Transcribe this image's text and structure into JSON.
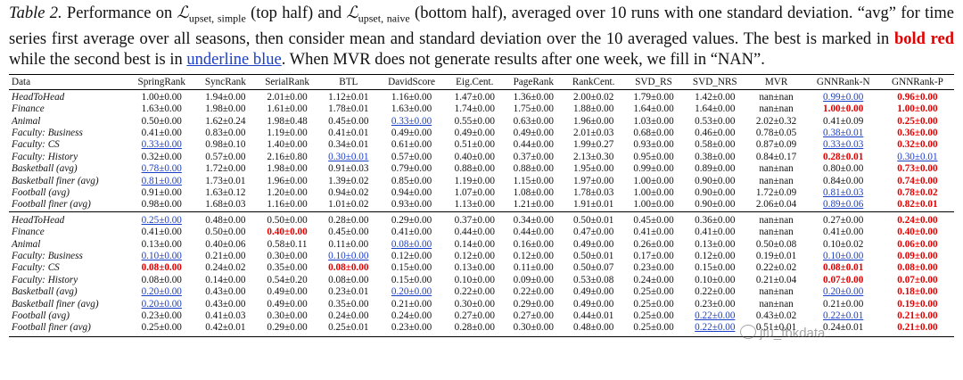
{
  "caption": {
    "label": "Table 2.",
    "t1": " Performance on ",
    "l1": "ℒ",
    "l1sub": "upset, simple",
    "t2": " (top half) and ",
    "l2": "ℒ",
    "l2sub": "upset, naive",
    "t3": " (bottom half), averaged over 10 runs with one standard deviation. “avg” for time series first average over all seasons, then consider mean and standard deviation over the 10 averaged values. The best is marked in ",
    "red": "bold red",
    "t4": " while the second best is in ",
    "blue": "underline blue",
    "t5": ". When MVR does not generate results after one week, we fill in “NAN”."
  },
  "table": {
    "headers": [
      "Data",
      "SpringRank",
      "SyncRank",
      "SerialRank",
      "BTL",
      "DavidScore",
      "Eig.Cent.",
      "PageRank",
      "RankCent.",
      "SVD_RS",
      "SVD_NRS",
      "MVR",
      "GNNRank-N",
      "GNNRank-P"
    ],
    "top": [
      [
        "HeadToHead",
        "1.00±0.00",
        "1.94±0.00",
        "2.01±0.00",
        "1.12±0.01",
        "1.16±0.00",
        "1.47±0.00",
        "1.36±0.00",
        "2.00±0.02",
        "1.79±0.00",
        "1.42±0.00",
        "nan±nan",
        "0.99±0.00",
        "0.96±0.00"
      ],
      [
        "Finance",
        "1.63±0.00",
        "1.98±0.00",
        "1.61±0.00",
        "1.78±0.01",
        "1.63±0.00",
        "1.74±0.00",
        "1.75±0.00",
        "1.88±0.00",
        "1.64±0.00",
        "1.64±0.00",
        "nan±nan",
        "1.00±0.00",
        "1.00±0.00"
      ],
      [
        "Animal",
        "0.50±0.00",
        "1.62±0.24",
        "1.98±0.48",
        "0.45±0.00",
        "0.33±0.00",
        "0.55±0.00",
        "0.63±0.00",
        "1.96±0.00",
        "1.03±0.00",
        "0.53±0.00",
        "2.02±0.32",
        "0.41±0.09",
        "0.25±0.00"
      ],
      [
        "Faculty: Business",
        "0.41±0.00",
        "0.83±0.00",
        "1.19±0.00",
        "0.41±0.01",
        "0.49±0.00",
        "0.49±0.00",
        "0.49±0.00",
        "2.01±0.03",
        "0.68±0.00",
        "0.46±0.00",
        "0.78±0.05",
        "0.38±0.01",
        "0.36±0.00"
      ],
      [
        "Faculty: CS",
        "0.33±0.00",
        "0.98±0.10",
        "1.40±0.00",
        "0.34±0.01",
        "0.61±0.00",
        "0.51±0.00",
        "0.44±0.00",
        "1.99±0.27",
        "0.93±0.00",
        "0.58±0.00",
        "0.87±0.09",
        "0.33±0.03",
        "0.32±0.00"
      ],
      [
        "Faculty: History",
        "0.32±0.00",
        "0.57±0.00",
        "2.16±0.80",
        "0.30±0.01",
        "0.57±0.00",
        "0.40±0.00",
        "0.37±0.00",
        "2.13±0.30",
        "0.95±0.00",
        "0.38±0.00",
        "0.84±0.17",
        "0.28±0.01",
        "0.30±0.01"
      ],
      [
        "Basketball (avg)",
        "0.78±0.00",
        "1.72±0.00",
        "1.98±0.00",
        "0.91±0.03",
        "0.79±0.00",
        "0.88±0.00",
        "0.88±0.00",
        "1.95±0.00",
        "0.99±0.00",
        "0.89±0.00",
        "nan±nan",
        "0.80±0.00",
        "0.73±0.00"
      ],
      [
        "Basketball finer (avg)",
        "0.81±0.00",
        "1.73±0.01",
        "1.96±0.00",
        "1.39±0.02",
        "0.85±0.00",
        "1.19±0.00",
        "1.15±0.00",
        "1.97±0.00",
        "1.00±0.00",
        "0.90±0.00",
        "nan±nan",
        "0.84±0.00",
        "0.74±0.00"
      ],
      [
        "Football (avg)",
        "0.91±0.00",
        "1.63±0.12",
        "1.20±0.00",
        "0.94±0.02",
        "0.94±0.00",
        "1.07±0.00",
        "1.08±0.00",
        "1.78±0.03",
        "1.00±0.00",
        "0.90±0.00",
        "1.72±0.09",
        "0.81±0.03",
        "0.78±0.02"
      ],
      [
        "Football finer (avg)",
        "0.98±0.00",
        "1.68±0.03",
        "1.16±0.00",
        "1.01±0.02",
        "0.93±0.00",
        "1.13±0.00",
        "1.21±0.00",
        "1.91±0.01",
        "1.00±0.00",
        "0.90±0.00",
        "2.06±0.04",
        "0.89±0.06",
        "0.82±0.01"
      ]
    ],
    "top_marks": [
      [
        "",
        "",
        "",
        "",
        "",
        "",
        "",
        "",
        "",
        "",
        "",
        "",
        "s",
        "b"
      ],
      [
        "",
        "",
        "",
        "",
        "",
        "",
        "",
        "",
        "",
        "",
        "",
        "",
        "b",
        "b"
      ],
      [
        "",
        "",
        "",
        "",
        "",
        "s",
        "",
        "",
        "",
        "",
        "",
        "",
        "",
        "b"
      ],
      [
        "",
        "",
        "",
        "",
        "",
        "",
        "",
        "",
        "",
        "",
        "",
        "",
        "s",
        "b"
      ],
      [
        "",
        "s",
        "",
        "",
        "",
        "",
        "",
        "",
        "",
        "",
        "",
        "",
        "s",
        "b"
      ],
      [
        "",
        "",
        "",
        "",
        "s",
        "",
        "",
        "",
        "",
        "",
        "",
        "",
        "b",
        "s"
      ],
      [
        "",
        "s",
        "",
        "",
        "",
        "",
        "",
        "",
        "",
        "",
        "",
        "",
        "",
        "b"
      ],
      [
        "",
        "s",
        "",
        "",
        "",
        "",
        "",
        "",
        "",
        "",
        "",
        "",
        "",
        "b"
      ],
      [
        "",
        "",
        "",
        "",
        "",
        "",
        "",
        "",
        "",
        "",
        "",
        "",
        "s",
        "b"
      ],
      [
        "",
        "",
        "",
        "",
        "",
        "",
        "",
        "",
        "",
        "",
        "",
        "",
        "s",
        "b"
      ]
    ],
    "bottom": [
      [
        "HeadToHead",
        "0.25±0.00",
        "0.48±0.00",
        "0.50±0.00",
        "0.28±0.00",
        "0.29±0.00",
        "0.37±0.00",
        "0.34±0.00",
        "0.50±0.01",
        "0.45±0.00",
        "0.36±0.00",
        "nan±nan",
        "0.27±0.00",
        "0.24±0.00"
      ],
      [
        "Finance",
        "0.41±0.00",
        "0.50±0.00",
        "0.40±0.00",
        "0.45±0.00",
        "0.41±0.00",
        "0.44±0.00",
        "0.44±0.00",
        "0.47±0.00",
        "0.41±0.00",
        "0.41±0.00",
        "nan±nan",
        "0.41±0.00",
        "0.40±0.00"
      ],
      [
        "Animal",
        "0.13±0.00",
        "0.40±0.06",
        "0.58±0.11",
        "0.11±0.00",
        "0.08±0.00",
        "0.14±0.00",
        "0.16±0.00",
        "0.49±0.00",
        "0.26±0.00",
        "0.13±0.00",
        "0.50±0.08",
        "0.10±0.02",
        "0.06±0.00"
      ],
      [
        "Faculty: Business",
        "0.10±0.00",
        "0.21±0.00",
        "0.30±0.00",
        "0.10±0.00",
        "0.12±0.00",
        "0.12±0.00",
        "0.12±0.00",
        "0.50±0.01",
        "0.17±0.00",
        "0.12±0.00",
        "0.19±0.01",
        "0.10±0.00",
        "0.09±0.00"
      ],
      [
        "Faculty: CS",
        "0.08±0.00",
        "0.24±0.02",
        "0.35±0.00",
        "0.08±0.00",
        "0.15±0.00",
        "0.13±0.00",
        "0.11±0.00",
        "0.50±0.07",
        "0.23±0.00",
        "0.15±0.00",
        "0.22±0.02",
        "0.08±0.01",
        "0.08±0.00"
      ],
      [
        "Faculty: History",
        "0.08±0.00",
        "0.14±0.00",
        "0.54±0.20",
        "0.08±0.00",
        "0.15±0.00",
        "0.10±0.00",
        "0.09±0.00",
        "0.53±0.08",
        "0.24±0.00",
        "0.10±0.00",
        "0.21±0.04",
        "0.07±0.00",
        "0.07±0.00"
      ],
      [
        "Basketball (avg)",
        "0.20±0.00",
        "0.43±0.00",
        "0.49±0.00",
        "0.23±0.01",
        "0.20±0.00",
        "0.22±0.00",
        "0.22±0.00",
        "0.49±0.00",
        "0.25±0.00",
        "0.22±0.00",
        "nan±nan",
        "0.20±0.00",
        "0.18±0.00"
      ],
      [
        "Basketball finer (avg)",
        "0.20±0.00",
        "0.43±0.00",
        "0.49±0.00",
        "0.35±0.00",
        "0.21±0.00",
        "0.30±0.00",
        "0.29±0.00",
        "0.49±0.00",
        "0.25±0.00",
        "0.23±0.00",
        "nan±nan",
        "0.21±0.00",
        "0.19±0.00"
      ],
      [
        "Football (avg)",
        "0.23±0.00",
        "0.41±0.03",
        "0.30±0.00",
        "0.24±0.00",
        "0.24±0.00",
        "0.27±0.00",
        "0.27±0.00",
        "0.44±0.01",
        "0.25±0.00",
        "0.22±0.00",
        "0.43±0.02",
        "0.22±0.01",
        "0.21±0.00"
      ],
      [
        "Football finer (avg)",
        "0.25±0.00",
        "0.42±0.01",
        "0.29±0.00",
        "0.25±0.01",
        "0.23±0.00",
        "0.28±0.00",
        "0.30±0.00",
        "0.48±0.00",
        "0.25±0.00",
        "0.22±0.00",
        "0.51±0.01",
        "0.24±0.01",
        "0.21±0.00"
      ]
    ],
    "bottom_marks": [
      [
        "",
        "s",
        "",
        "",
        "",
        "",
        "",
        "",
        "",
        "",
        "",
        "",
        "",
        "b"
      ],
      [
        "",
        "",
        "",
        "b",
        "",
        "",
        "",
        "",
        "",
        "",
        "",
        "",
        "",
        "b"
      ],
      [
        "",
        "",
        "",
        "",
        "",
        "s",
        "",
        "",
        "",
        "",
        "",
        "",
        "",
        "b"
      ],
      [
        "",
        "s",
        "",
        "",
        "s",
        "",
        "",
        "",
        "",
        "",
        "",
        "",
        "s",
        "b"
      ],
      [
        "",
        "b",
        "",
        "",
        "b",
        "",
        "",
        "",
        "",
        "",
        "",
        "",
        "b",
        "b"
      ],
      [
        "",
        "",
        "",
        "",
        "",
        "",
        "",
        "",
        "",
        "",
        "",
        "",
        "b",
        "b"
      ],
      [
        "",
        "s",
        "",
        "",
        "",
        "s",
        "",
        "",
        "",
        "",
        "",
        "",
        "s",
        "b"
      ],
      [
        "",
        "s",
        "",
        "",
        "",
        "",
        "",
        "",
        "",
        "",
        "",
        "",
        "",
        "b"
      ],
      [
        "",
        "",
        "",
        "",
        "",
        "",
        "",
        "",
        "",
        "",
        "s",
        "",
        "s",
        "b"
      ],
      [
        "",
        "",
        "",
        "",
        "",
        "",
        "",
        "",
        "",
        "",
        "s",
        "",
        "",
        "b"
      ]
    ]
  },
  "watermark": {
    "text": "jtu_fbkdata",
    "icon": "wechat-icon"
  }
}
